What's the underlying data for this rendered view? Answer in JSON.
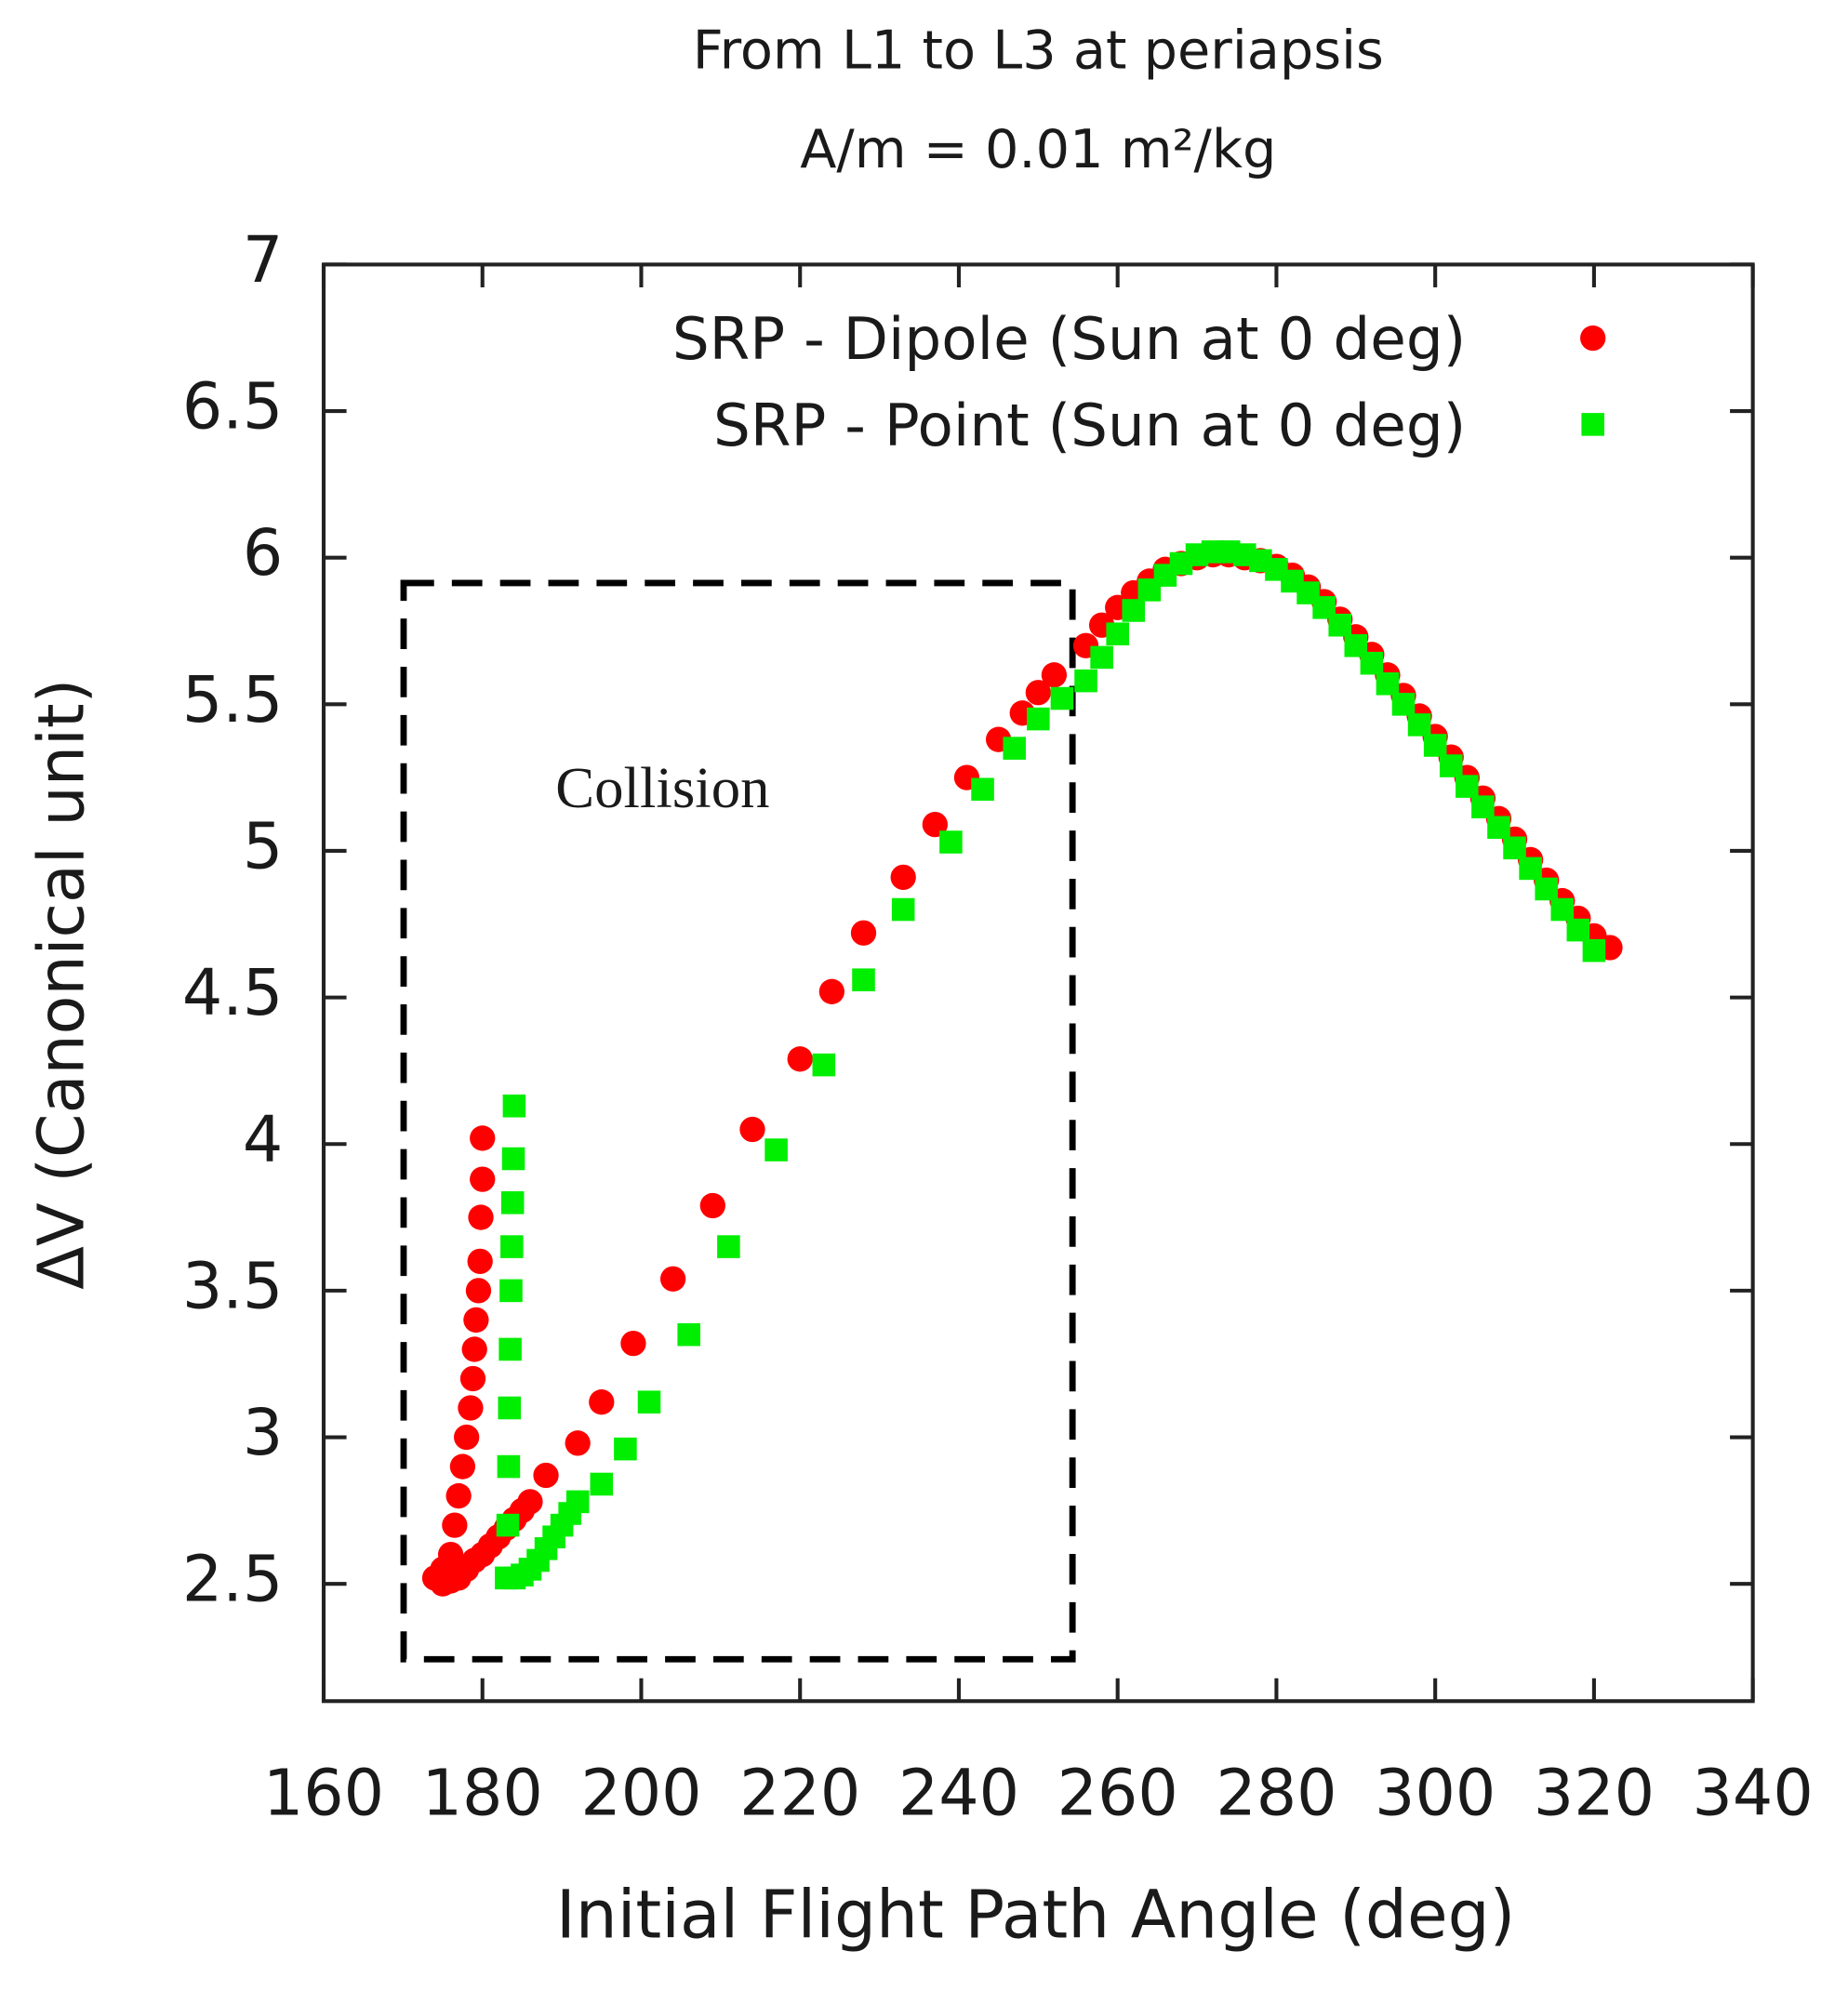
{
  "chart_data": {
    "type": "scatter",
    "title": [
      "From L1 to L3 at periapsis",
      "A/m = 0.01 m²/kg"
    ],
    "xlabel": "Initial Flight Path Angle (deg)",
    "ylabel": "ΔV (Canonical unit)",
    "annotation": "Collision",
    "xlim": [
      160,
      340
    ],
    "xticks": [
      160,
      180,
      200,
      220,
      240,
      260,
      280,
      300,
      320,
      340
    ],
    "ylim": [
      2.1,
      7
    ],
    "yticks": [
      2.5,
      3,
      3.5,
      4,
      4.5,
      5,
      5.5,
      6,
      6.5,
      7
    ],
    "legend": "upper right",
    "series": [
      {
        "name": "SRP - Dipole (Sun at 0 deg)",
        "color": "#ff0000",
        "marker": "circle",
        "x": [
          174,
          175,
          176,
          176.5,
          177,
          177.5,
          178,
          178.5,
          178.8,
          179,
          179.2,
          179.5,
          179.7,
          179.8,
          180,
          180,
          175,
          176,
          177,
          178,
          179,
          180,
          181,
          182,
          183,
          184,
          185,
          186,
          188,
          192,
          195,
          199,
          204,
          209,
          214,
          220,
          224,
          228,
          233,
          237,
          241,
          245,
          248,
          250,
          252,
          256,
          258,
          260,
          262,
          264,
          266,
          268,
          270,
          272,
          274,
          276,
          278,
          280,
          282,
          284,
          286,
          288,
          290,
          292,
          294,
          296,
          298,
          300,
          302,
          304,
          306,
          308,
          310,
          312,
          314,
          316,
          318,
          320,
          322
        ],
        "values": [
          2.52,
          2.55,
          2.6,
          2.7,
          2.8,
          2.9,
          3.0,
          3.1,
          3.2,
          3.3,
          3.4,
          3.5,
          3.6,
          3.75,
          3.88,
          4.02,
          2.5,
          2.51,
          2.52,
          2.55,
          2.58,
          2.6,
          2.63,
          2.66,
          2.69,
          2.72,
          2.75,
          2.78,
          2.87,
          2.98,
          3.12,
          3.32,
          3.54,
          3.79,
          4.05,
          4.29,
          4.52,
          4.72,
          4.91,
          5.09,
          5.25,
          5.38,
          5.47,
          5.54,
          5.6,
          5.7,
          5.77,
          5.83,
          5.88,
          5.92,
          5.96,
          5.98,
          6.0,
          6.01,
          6.01,
          6.0,
          5.99,
          5.97,
          5.94,
          5.9,
          5.85,
          5.79,
          5.73,
          5.67,
          5.6,
          5.53,
          5.46,
          5.39,
          5.32,
          5.25,
          5.18,
          5.11,
          5.04,
          4.97,
          4.9,
          4.83,
          4.77,
          4.71,
          4.67
        ]
      },
      {
        "name": "SRP - Point (Sun at 0 deg)",
        "color": "#00ee00",
        "marker": "square",
        "x": [
          183,
          183.2,
          183.3,
          183.4,
          183.5,
          183.6,
          183.7,
          183.8,
          183.9,
          184,
          184,
          185,
          186,
          187,
          188,
          189,
          190,
          191,
          192,
          195,
          198,
          201,
          206,
          211,
          217,
          223,
          228,
          233,
          239,
          243,
          247,
          250,
          253,
          256,
          258,
          260,
          262,
          264,
          266,
          268,
          270,
          272,
          274,
          276,
          278,
          280,
          282,
          284,
          286,
          288,
          290,
          292,
          294,
          296,
          298,
          300,
          302,
          304,
          306,
          308,
          310,
          312,
          314,
          316,
          318,
          320
        ],
        "values": [
          2.52,
          2.7,
          2.9,
          3.1,
          3.3,
          3.5,
          3.65,
          3.8,
          3.95,
          4.13,
          2.52,
          2.53,
          2.55,
          2.58,
          2.62,
          2.66,
          2.7,
          2.74,
          2.78,
          2.84,
          2.96,
          3.12,
          3.35,
          3.65,
          3.98,
          4.27,
          4.56,
          4.8,
          5.03,
          5.21,
          5.35,
          5.45,
          5.52,
          5.58,
          5.66,
          5.74,
          5.82,
          5.89,
          5.94,
          5.98,
          6.01,
          6.02,
          6.02,
          6.01,
          5.99,
          5.96,
          5.92,
          5.88,
          5.83,
          5.77,
          5.7,
          5.64,
          5.57,
          5.5,
          5.43,
          5.36,
          5.29,
          5.22,
          5.15,
          5.08,
          5.01,
          4.94,
          4.87,
          4.8,
          4.73,
          4.66
        ]
      }
    ]
  }
}
